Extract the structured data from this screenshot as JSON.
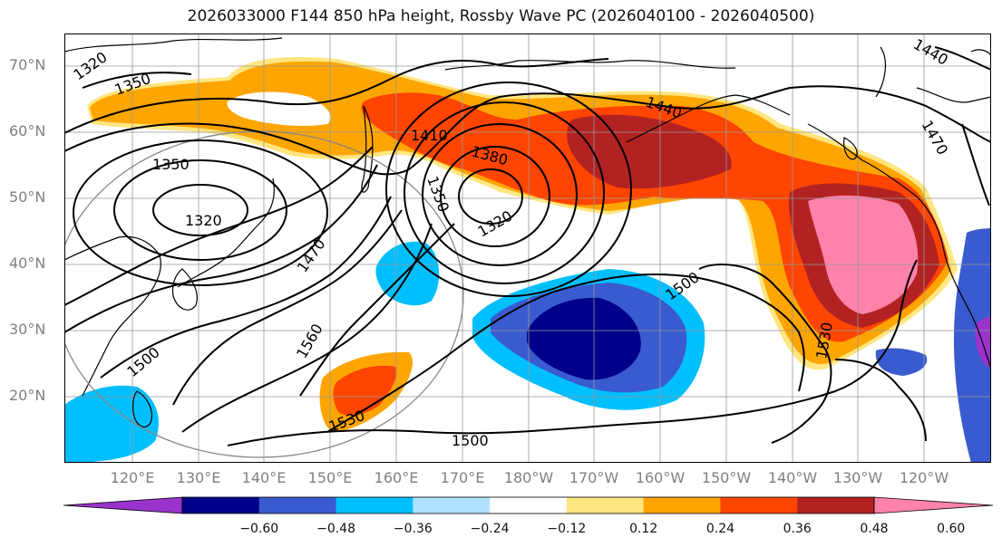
{
  "title": "2026033000 F144 850 hPa height, Rossby Wave PC (2026040100 - 2026040500)",
  "lat_labels": [
    "70°N",
    "60°N",
    "50°N",
    "40°N",
    "30°N",
    "20°N"
  ],
  "lon_labels": [
    "120°E",
    "130°E",
    "140°E",
    "150°E",
    "160°E",
    "170°E",
    "180°W",
    "170°W",
    "160°W",
    "150°W",
    "140°W",
    "130°W",
    "120°W"
  ],
  "contour_labels": [
    "1320",
    "1350",
    "1320",
    "1350",
    "1410",
    "1380",
    "1350",
    "1320",
    "1440",
    "1470",
    "1470",
    "1500",
    "1560",
    "1530",
    "1500",
    "1500",
    "1530",
    "1440"
  ],
  "colorbar": {
    "extend": "both",
    "colors": [
      "#9933CC",
      "#00008B",
      "#3A5BD0",
      "#00BFFF",
      "#B0E2FF",
      "#FFFFFF",
      "#FFE680",
      "#FFA500",
      "#FF4500",
      "#B22222",
      "#FF82AB"
    ],
    "tick_labels": [
      "−0.60",
      "−0.48",
      "−0.36",
      "−0.24",
      "−0.12",
      "0.12",
      "0.24",
      "0.36",
      "0.48",
      "0.60"
    ]
  }
}
